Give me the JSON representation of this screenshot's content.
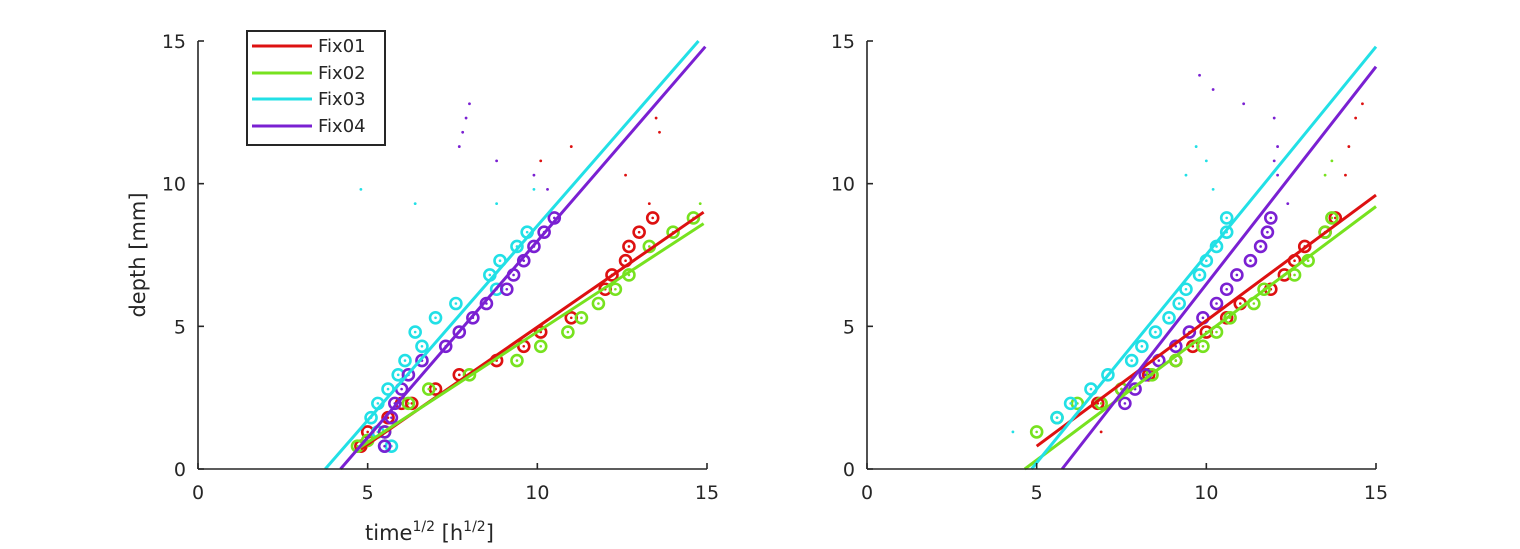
{
  "colors": {
    "Fix01": "#dd1111",
    "Fix02": "#77e21f",
    "Fix03": "#22e0e6",
    "Fix04": "#7a20d2",
    "axis": "#262626"
  },
  "legend": {
    "placement": "top-left",
    "entries": [
      "Fix01",
      "Fix02",
      "Fix03",
      "Fix04"
    ]
  },
  "chart_data": [
    {
      "type": "scatter",
      "title": "",
      "xlabel": {
        "base": "time",
        "sup1": "1/2",
        "mid": " [h",
        "sup2": "1/2",
        "end": "]"
      },
      "ylabel": "depth [mm]",
      "xlim": [
        0,
        15
      ],
      "ylim": [
        0,
        15
      ],
      "xticks": [
        "0",
        "5",
        "10",
        "15"
      ],
      "yticks": [
        "0",
        "5",
        "10",
        "15"
      ],
      "grid": false,
      "series": [
        {
          "name": "Fix01",
          "fit": [
            [
              4.8,
              0.7
            ],
            [
              14.9,
              9.0
            ]
          ],
          "circles": [
            [
              4.8,
              0.8
            ],
            [
              5.0,
              1.3
            ],
            [
              5.6,
              1.8
            ],
            [
              6.0,
              2.3
            ],
            [
              6.3,
              2.3
            ],
            [
              7.0,
              2.8
            ],
            [
              7.7,
              3.3
            ],
            [
              8.8,
              3.8
            ],
            [
              9.6,
              4.3
            ],
            [
              10.1,
              4.8
            ],
            [
              11.0,
              5.3
            ],
            [
              12.0,
              6.3
            ],
            [
              12.2,
              6.8
            ],
            [
              12.6,
              7.3
            ],
            [
              12.7,
              7.8
            ],
            [
              13.0,
              8.3
            ],
            [
              13.4,
              8.8
            ]
          ],
          "dots": [
            [
              10.1,
              10.8
            ],
            [
              11.0,
              11.3
            ],
            [
              12.6,
              10.3
            ],
            [
              13.3,
              9.3
            ],
            [
              13.5,
              12.3
            ],
            [
              13.6,
              11.8
            ]
          ]
        },
        {
          "name": "Fix02",
          "fit": [
            [
              4.7,
              0.7
            ],
            [
              14.9,
              8.6
            ]
          ],
          "circles": [
            [
              4.7,
              0.8
            ],
            [
              5.0,
              1.0
            ],
            [
              5.5,
              1.3
            ],
            [
              6.2,
              2.3
            ],
            [
              6.8,
              2.8
            ],
            [
              8.0,
              3.3
            ],
            [
              9.4,
              3.8
            ],
            [
              10.1,
              4.3
            ],
            [
              10.9,
              4.8
            ],
            [
              11.3,
              5.3
            ],
            [
              11.8,
              5.8
            ],
            [
              12.3,
              6.3
            ],
            [
              12.7,
              6.8
            ],
            [
              13.3,
              7.8
            ],
            [
              14.0,
              8.3
            ],
            [
              14.6,
              8.8
            ]
          ],
          "dots": [
            [
              14.8,
              9.3
            ]
          ]
        },
        {
          "name": "Fix03",
          "fit": [
            [
              3.75,
              0
            ],
            [
              14.75,
              15.0
            ]
          ],
          "circles": [
            [
              5.5,
              0.8
            ],
            [
              5.7,
              0.8
            ],
            [
              5.3,
              1.3
            ],
            [
              5.1,
              1.8
            ],
            [
              5.3,
              2.3
            ],
            [
              5.6,
              2.8
            ],
            [
              5.9,
              3.3
            ],
            [
              6.1,
              3.8
            ],
            [
              6.6,
              4.3
            ],
            [
              6.4,
              4.8
            ],
            [
              7.0,
              5.3
            ],
            [
              7.6,
              5.8
            ],
            [
              8.8,
              6.3
            ],
            [
              8.6,
              6.8
            ],
            [
              8.9,
              7.3
            ],
            [
              9.4,
              7.8
            ],
            [
              9.7,
              8.3
            ]
          ],
          "dots": [
            [
              4.8,
              9.8
            ],
            [
              6.4,
              9.3
            ],
            [
              8.8,
              9.3
            ],
            [
              9.9,
              9.8
            ]
          ]
        },
        {
          "name": "Fix04",
          "fit": [
            [
              4.2,
              0
            ],
            [
              14.95,
              14.8
            ]
          ],
          "circles": [
            [
              5.5,
              0.8
            ],
            [
              5.5,
              1.3
            ],
            [
              5.7,
              1.8
            ],
            [
              5.8,
              2.3
            ],
            [
              6.0,
              2.8
            ],
            [
              6.2,
              3.3
            ],
            [
              6.6,
              3.8
            ],
            [
              7.3,
              4.3
            ],
            [
              7.7,
              4.8
            ],
            [
              8.1,
              5.3
            ],
            [
              8.5,
              5.8
            ],
            [
              9.1,
              6.3
            ],
            [
              9.3,
              6.8
            ],
            [
              9.6,
              7.3
            ],
            [
              9.9,
              7.8
            ],
            [
              10.2,
              8.3
            ],
            [
              10.5,
              8.8
            ]
          ],
          "dots": [
            [
              7.7,
              11.3
            ],
            [
              7.8,
              11.8
            ],
            [
              7.9,
              12.3
            ],
            [
              8.0,
              12.8
            ],
            [
              8.8,
              10.8
            ],
            [
              9.9,
              10.3
            ],
            [
              10.3,
              9.8
            ]
          ]
        }
      ]
    },
    {
      "type": "scatter",
      "title": "",
      "xlabel": "",
      "ylabel": "",
      "xlim": [
        0,
        15
      ],
      "ylim": [
        0,
        15
      ],
      "xticks": [
        "0",
        "5",
        "10",
        "15"
      ],
      "yticks": [
        "0",
        "5",
        "10",
        "15"
      ],
      "grid": false,
      "series": [
        {
          "name": "Fix01",
          "fit": [
            [
              5.0,
              0.8
            ],
            [
              15.0,
              9.6
            ]
          ],
          "circles": [
            [
              6.8,
              2.3
            ],
            [
              7.5,
              2.8
            ],
            [
              8.3,
              3.3
            ],
            [
              9.1,
              3.8
            ],
            [
              9.6,
              4.3
            ],
            [
              10.0,
              4.8
            ],
            [
              10.6,
              5.3
            ],
            [
              11.0,
              5.8
            ],
            [
              11.9,
              6.3
            ],
            [
              12.3,
              6.8
            ],
            [
              12.6,
              7.3
            ],
            [
              12.9,
              7.8
            ],
            [
              13.5,
              8.3
            ],
            [
              13.8,
              8.8
            ]
          ],
          "dots": [
            [
              6.9,
              1.3
            ],
            [
              14.1,
              10.3
            ],
            [
              14.2,
              11.3
            ],
            [
              14.4,
              12.3
            ],
            [
              14.6,
              12.8
            ]
          ]
        },
        {
          "name": "Fix02",
          "fit": [
            [
              4.65,
              0
            ],
            [
              15.0,
              9.2
            ]
          ],
          "circles": [
            [
              5.0,
              1.3
            ],
            [
              5.6,
              1.8
            ],
            [
              6.2,
              2.3
            ],
            [
              6.9,
              2.3
            ],
            [
              7.5,
              2.8
            ],
            [
              8.4,
              3.3
            ],
            [
              9.1,
              3.8
            ],
            [
              9.9,
              4.3
            ],
            [
              10.3,
              4.8
            ],
            [
              10.7,
              5.3
            ],
            [
              11.4,
              5.8
            ],
            [
              11.7,
              6.3
            ],
            [
              12.6,
              6.8
            ],
            [
              13.0,
              7.3
            ],
            [
              13.5,
              8.3
            ],
            [
              13.7,
              8.8
            ]
          ],
          "dots": [
            [
              13.5,
              10.3
            ],
            [
              13.7,
              10.8
            ]
          ]
        },
        {
          "name": "Fix03",
          "fit": [
            [
              4.85,
              0
            ],
            [
              15.0,
              14.8
            ]
          ],
          "circles": [
            [
              5.6,
              1.8
            ],
            [
              6.0,
              2.3
            ],
            [
              6.6,
              2.8
            ],
            [
              7.1,
              3.3
            ],
            [
              7.8,
              3.8
            ],
            [
              8.1,
              4.3
            ],
            [
              8.5,
              4.8
            ],
            [
              8.9,
              5.3
            ],
            [
              9.2,
              5.8
            ],
            [
              9.4,
              6.3
            ],
            [
              9.8,
              6.8
            ],
            [
              10.0,
              7.3
            ],
            [
              10.3,
              7.8
            ],
            [
              10.6,
              8.3
            ],
            [
              10.6,
              8.8
            ]
          ],
          "dots": [
            [
              4.3,
              1.3
            ],
            [
              9.4,
              10.3
            ],
            [
              9.7,
              11.3
            ],
            [
              10.0,
              10.8
            ],
            [
              10.2,
              9.8
            ]
          ]
        },
        {
          "name": "Fix04",
          "fit": [
            [
              5.75,
              0
            ],
            [
              15.0,
              14.1
            ]
          ],
          "circles": [
            [
              7.6,
              2.3
            ],
            [
              7.9,
              2.8
            ],
            [
              8.2,
              3.3
            ],
            [
              8.6,
              3.8
            ],
            [
              9.1,
              4.3
            ],
            [
              9.5,
              4.8
            ],
            [
              9.9,
              5.3
            ],
            [
              10.3,
              5.8
            ],
            [
              10.6,
              6.3
            ],
            [
              10.9,
              6.8
            ],
            [
              11.3,
              7.3
            ],
            [
              11.6,
              7.8
            ],
            [
              11.8,
              8.3
            ],
            [
              11.9,
              8.8
            ]
          ],
          "dots": [
            [
              9.8,
              13.8
            ],
            [
              10.2,
              13.3
            ],
            [
              11.1,
              12.8
            ],
            [
              12.0,
              12.3
            ],
            [
              12.1,
              11.3
            ],
            [
              12.0,
              10.8
            ],
            [
              12.1,
              10.3
            ],
            [
              12.4,
              9.3
            ]
          ]
        }
      ]
    }
  ]
}
